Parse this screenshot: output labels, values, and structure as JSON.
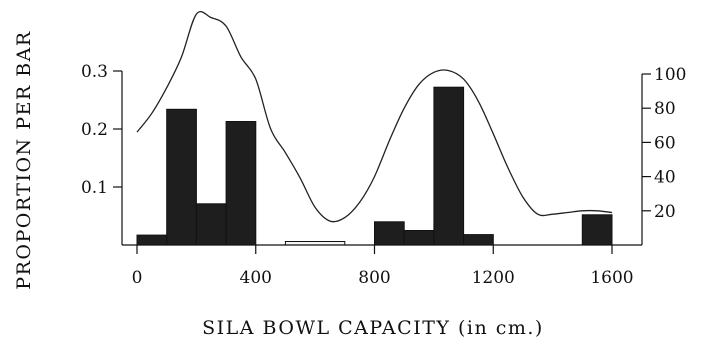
{
  "chart_data": {
    "type": "bar",
    "xlabel": "SILA BOWL CAPACITY (in  cm.)",
    "ylabel": "PROPORTION PER BAR",
    "xlim": [
      -100,
      1700
    ],
    "ylim": [
      0,
      0.3
    ],
    "y2lim": [
      0,
      100
    ],
    "x_ticks": [
      0,
      400,
      800,
      1200,
      1600
    ],
    "y_ticks": [
      0.1,
      0.2,
      0.3
    ],
    "y2_ticks": [
      20,
      40,
      60,
      80,
      100
    ],
    "bin_width": 100,
    "bars": [
      {
        "x_start": 0,
        "x_end": 100,
        "value": 0.017
      },
      {
        "x_start": 100,
        "x_end": 200,
        "value": 0.234
      },
      {
        "x_start": 200,
        "x_end": 300,
        "value": 0.071
      },
      {
        "x_start": 300,
        "x_end": 400,
        "value": 0.213
      },
      {
        "x_start": 500,
        "x_end": 700,
        "value": 0.006
      },
      {
        "x_start": 800,
        "x_end": 900,
        "value": 0.04
      },
      {
        "x_start": 900,
        "x_end": 1000,
        "value": 0.025
      },
      {
        "x_start": 1000,
        "x_end": 1100,
        "value": 0.272
      },
      {
        "x_start": 1100,
        "x_end": 1200,
        "value": 0.018
      },
      {
        "x_start": 1500,
        "x_end": 1600,
        "value": 0.052
      }
    ],
    "density_curve": {
      "axis": "right",
      "points": [
        [
          0,
          66
        ],
        [
          50,
          77
        ],
        [
          100,
          92
        ],
        [
          150,
          110
        ],
        [
          200,
          135
        ],
        [
          250,
          133
        ],
        [
          300,
          128
        ],
        [
          350,
          110
        ],
        [
          400,
          97
        ],
        [
          450,
          68
        ],
        [
          500,
          54
        ],
        [
          550,
          39
        ],
        [
          600,
          22
        ],
        [
          650,
          14
        ],
        [
          700,
          16
        ],
        [
          750,
          25
        ],
        [
          800,
          40
        ],
        [
          850,
          61
        ],
        [
          900,
          80
        ],
        [
          950,
          94
        ],
        [
          1000,
          101
        ],
        [
          1050,
          102
        ],
        [
          1100,
          97
        ],
        [
          1150,
          84
        ],
        [
          1200,
          65
        ],
        [
          1250,
          45
        ],
        [
          1300,
          28
        ],
        [
          1350,
          18
        ],
        [
          1400,
          18
        ],
        [
          1450,
          19
        ],
        [
          1500,
          20
        ],
        [
          1550,
          20
        ],
        [
          1600,
          19
        ]
      ]
    }
  },
  "colors": {
    "bar_fill": "#1e1e1e",
    "bar_light": "#f4f4f4",
    "line": "#222222",
    "axis": "#111111",
    "background": "#ffffff"
  }
}
